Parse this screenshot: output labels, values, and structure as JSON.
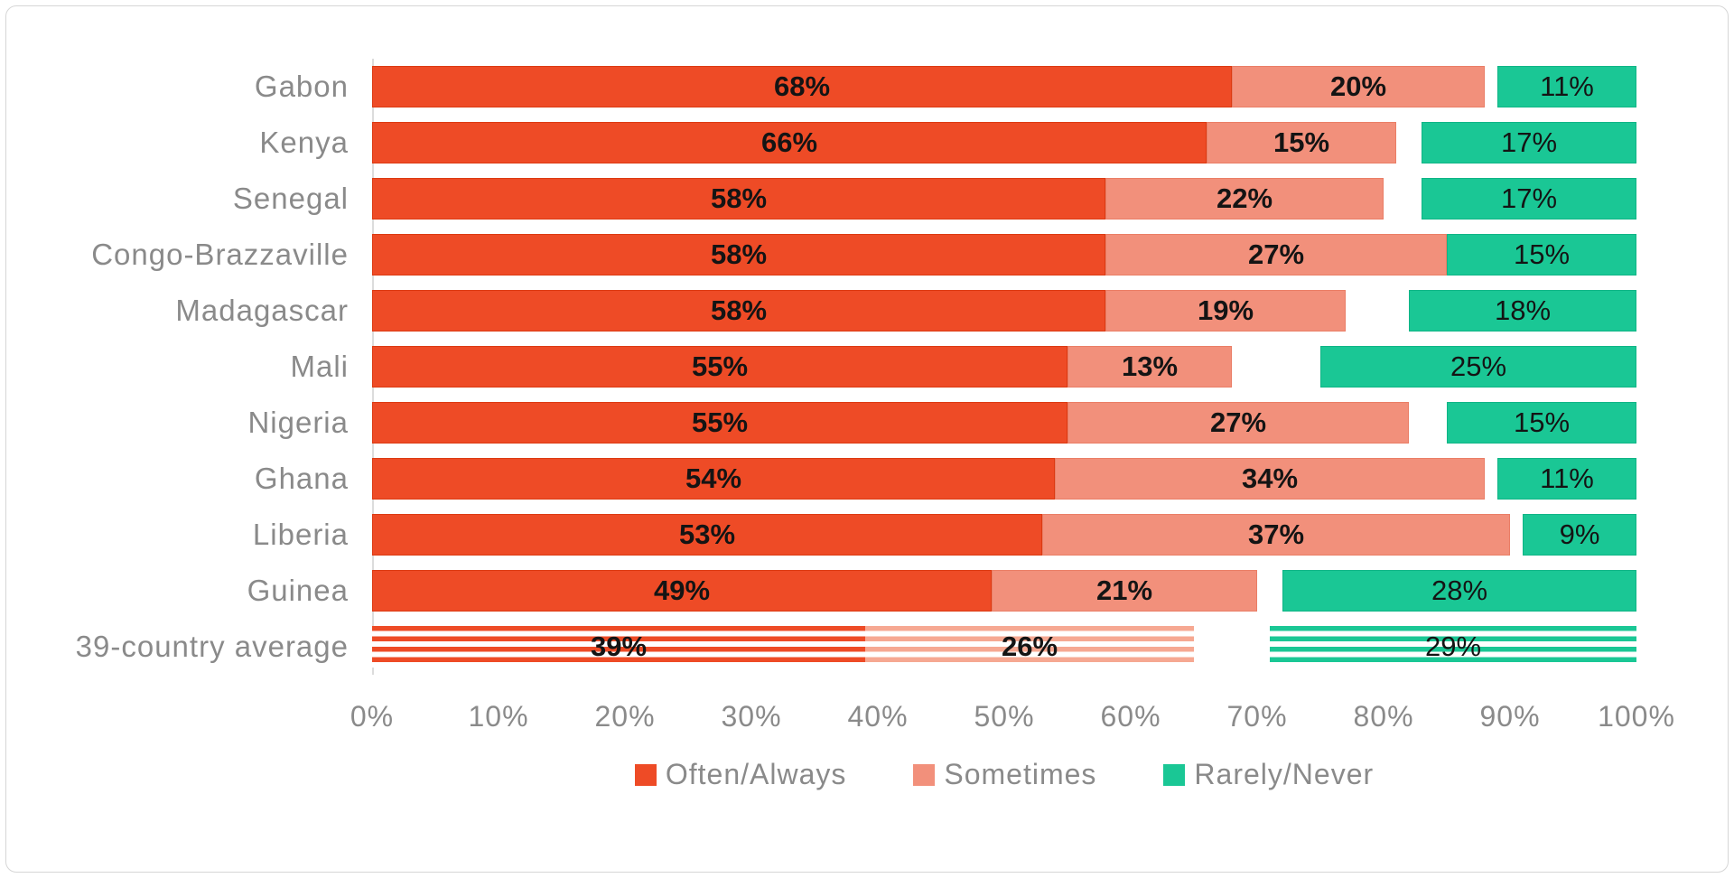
{
  "chart_data": {
    "type": "bar",
    "orientation": "horizontal",
    "stacked": true,
    "title": "",
    "xlabel": "",
    "ylabel": "",
    "xlim": [
      0,
      100
    ],
    "grid": false,
    "legend_position": "bottom",
    "categories": [
      "Gabon",
      "Kenya",
      "Senegal",
      "Congo-Brazzaville",
      "Madagascar",
      "Mali",
      "Nigeria",
      "Ghana",
      "Liberia",
      "Guinea",
      "39-country average"
    ],
    "series": [
      {
        "name": "Often/Always",
        "color": "#EE4B26",
        "values": [
          68,
          66,
          58,
          58,
          58,
          55,
          55,
          54,
          53,
          49,
          39
        ]
      },
      {
        "name": "Sometimes",
        "color": "#F2907B",
        "values": [
          20,
          15,
          22,
          27,
          19,
          13,
          27,
          34,
          37,
          21,
          26
        ]
      },
      {
        "name": "Rarely/Never",
        "color": "#1AC795",
        "values": [
          11,
          17,
          17,
          15,
          18,
          25,
          15,
          11,
          9,
          28,
          29
        ],
        "alignment": "right-aligned-at-100"
      }
    ],
    "value_label_suffix": "%",
    "x_ticks": [
      "0%",
      "10%",
      "20%",
      "30%",
      "40%",
      "50%",
      "60%",
      "70%",
      "80%",
      "90%",
      "100%"
    ],
    "striped_rows": [
      10
    ],
    "notes": "Rarely/Never segments are right-aligned at 100%; white space between Sometimes and Rarely/Never is the unlabeled remainder. Last row (39-country average) drawn with horizontal-stripe pattern fill."
  },
  "styles": {
    "category_label_color": "#8A8A8A",
    "tick_label_color": "#8A8A8A",
    "value_label_color": "#141414",
    "frame_border_color": "#D6D6D6"
  }
}
